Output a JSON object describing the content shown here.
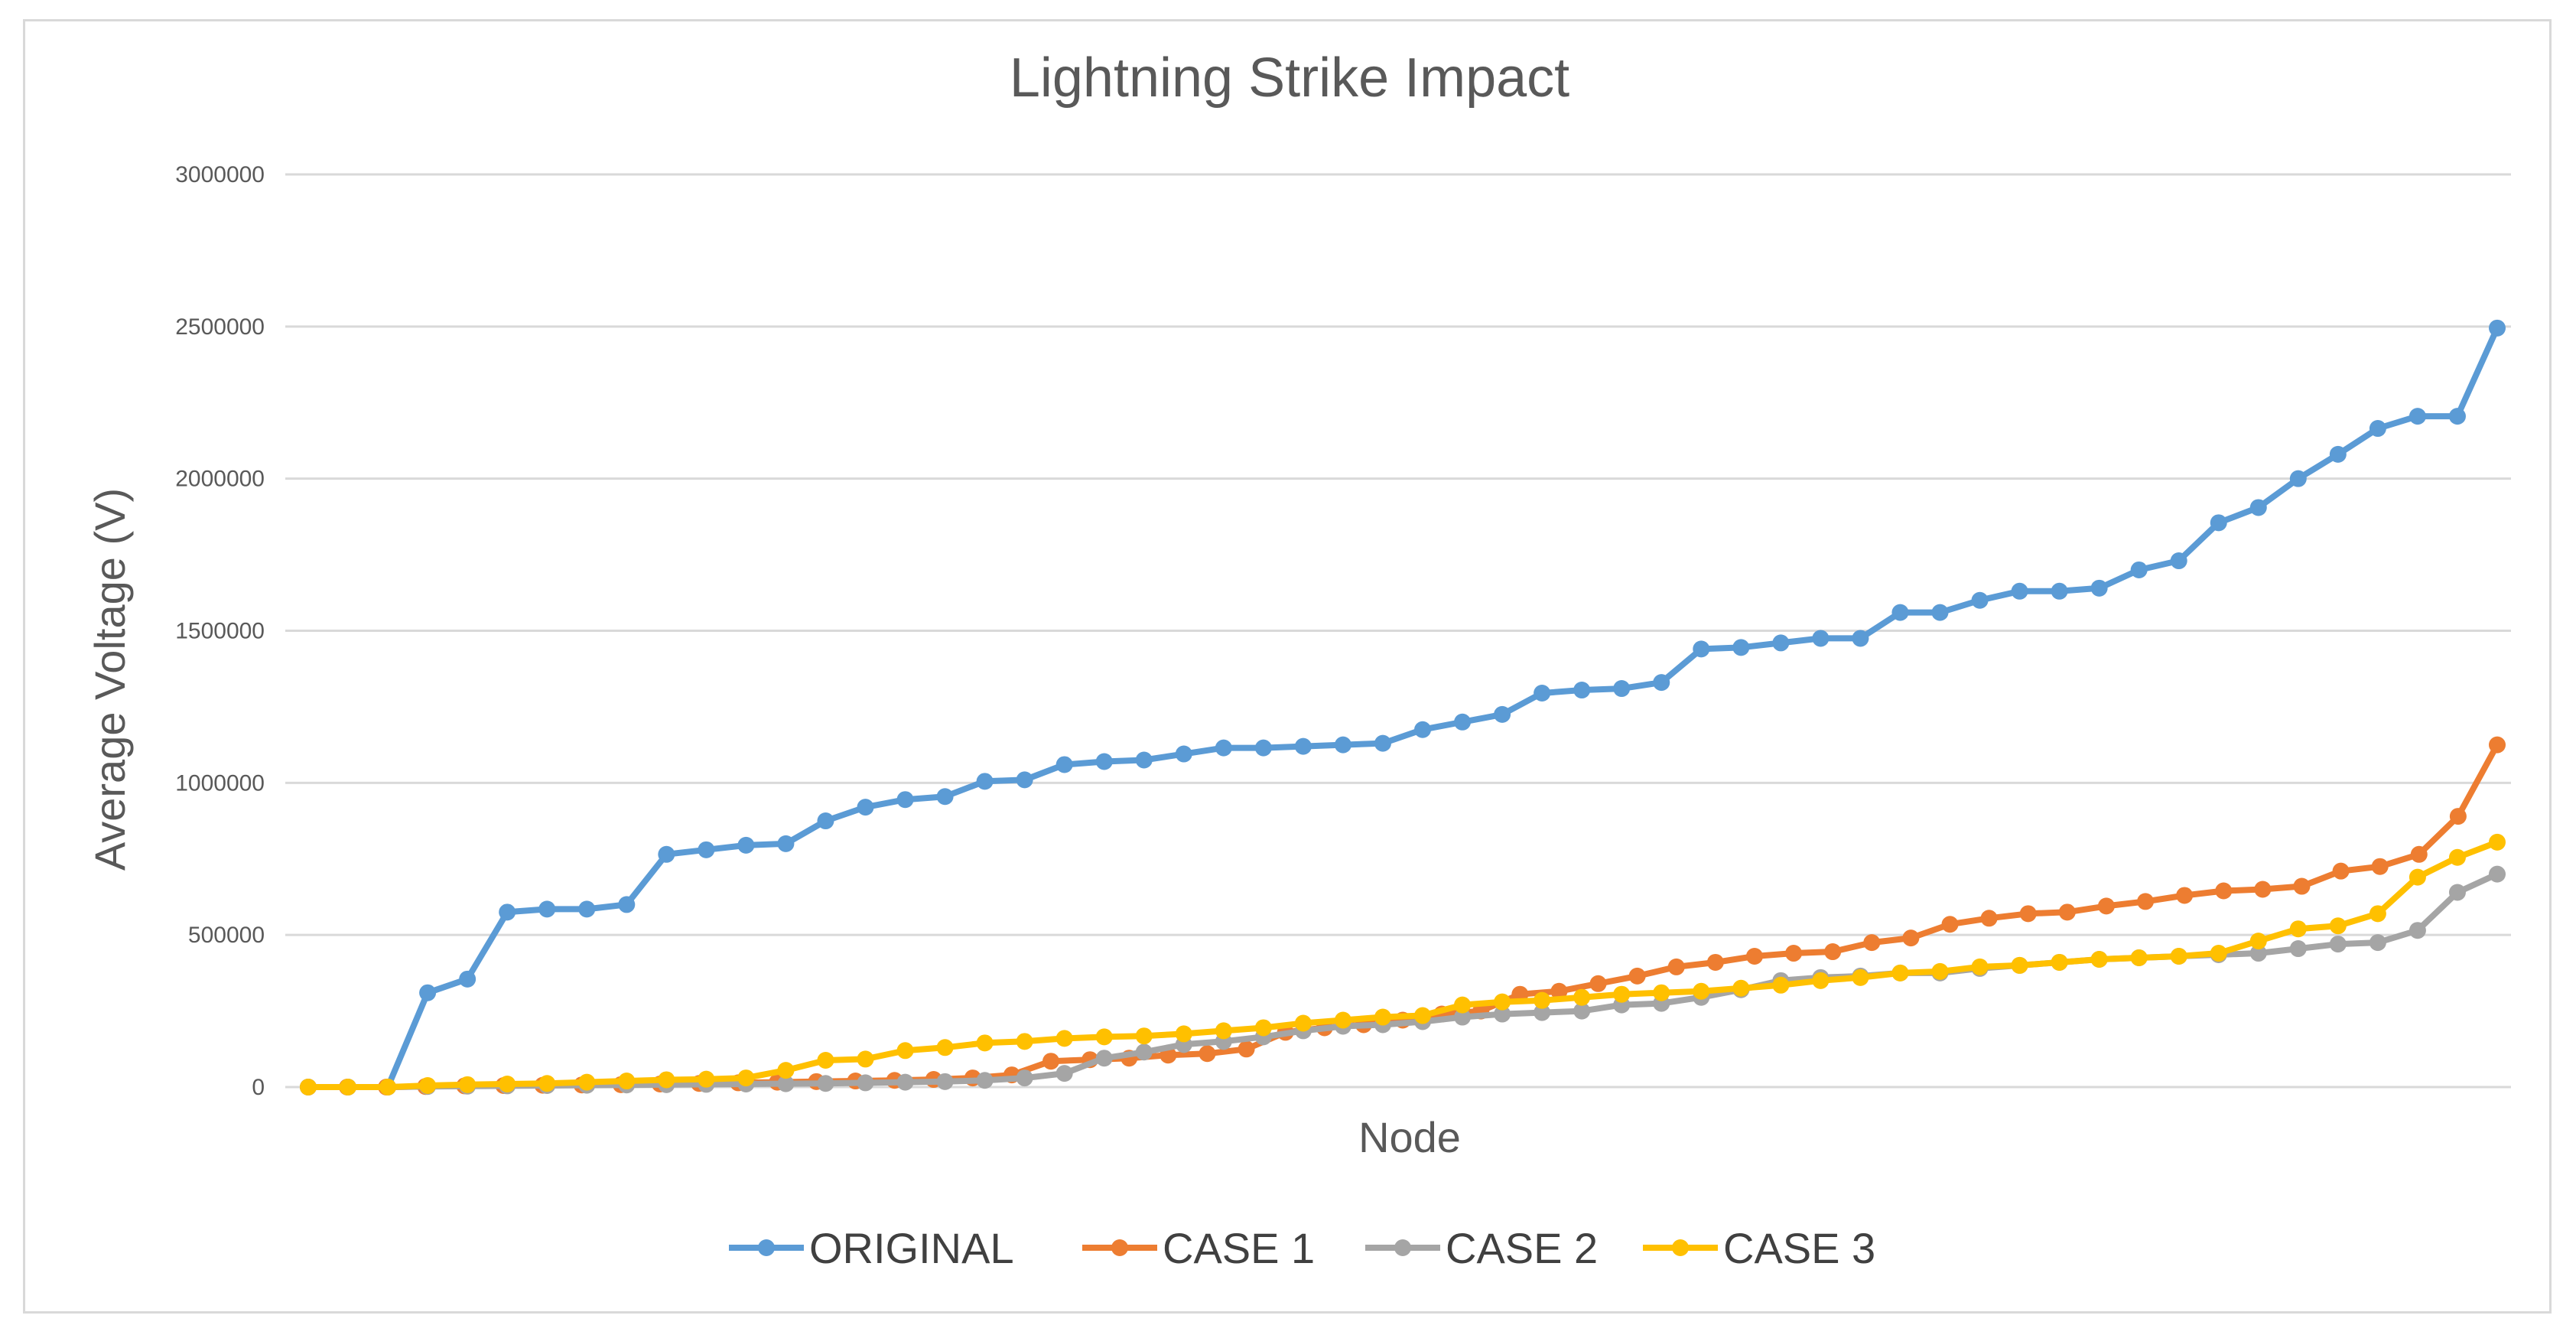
{
  "chart_data": {
    "type": "line",
    "title": "Lightning Strike Impact",
    "xlabel": "Node",
    "ylabel": "Average Voltage (V)",
    "ylim": [
      0,
      3000000
    ],
    "yticks": [
      "0",
      "500000",
      "1000000",
      "1500000",
      "2000000",
      "2500000",
      "3000000"
    ],
    "grid": true,
    "legend_position": "bottom",
    "series": [
      {
        "name": "ORIGINAL",
        "color": "#5B9BD5",
        "values": [
          0,
          0,
          0,
          310000,
          355000,
          575000,
          585000,
          585000,
          600000,
          765000,
          780000,
          795000,
          800000,
          875000,
          920000,
          945000,
          955000,
          1005000,
          1010000,
          1060000,
          1070000,
          1075000,
          1095000,
          1115000,
          1115000,
          1120000,
          1125000,
          1130000,
          1175000,
          1200000,
          1225000,
          1295000,
          1305000,
          1310000,
          1330000,
          1440000,
          1445000,
          1460000,
          1475000,
          1475000,
          1560000,
          1560000,
          1600000,
          1630000,
          1630000,
          1640000,
          1700000,
          1730000,
          1855000,
          1905000,
          2000000,
          2080000,
          2165000,
          2205000,
          2205000,
          2495000
        ]
      },
      {
        "name": "CASE 1",
        "color": "#ED7D31",
        "values": [
          0,
          0,
          0,
          2000,
          4000,
          5000,
          6000,
          7000,
          8000,
          10000,
          12000,
          14000,
          16000,
          18000,
          20000,
          22000,
          25000,
          30000,
          40000,
          85000,
          90000,
          95000,
          105000,
          110000,
          125000,
          180000,
          195000,
          205000,
          220000,
          240000,
          250000,
          305000,
          315000,
          340000,
          365000,
          395000,
          410000,
          430000,
          440000,
          445000,
          475000,
          490000,
          535000,
          555000,
          570000,
          575000,
          595000,
          610000,
          630000,
          645000,
          650000,
          660000,
          710000,
          725000,
          765000,
          890000,
          1125000
        ]
      },
      {
        "name": "CASE 2",
        "color": "#A5A5A5",
        "values": [
          0,
          0,
          0,
          2000,
          3000,
          4000,
          5000,
          6000,
          7000,
          8000,
          9000,
          10000,
          11000,
          12000,
          14000,
          16000,
          18000,
          22000,
          30000,
          45000,
          95000,
          115000,
          140000,
          150000,
          165000,
          185000,
          200000,
          205000,
          215000,
          230000,
          240000,
          245000,
          250000,
          270000,
          275000,
          295000,
          320000,
          350000,
          360000,
          365000,
          375000,
          375000,
          390000,
          400000,
          410000,
          420000,
          425000,
          430000,
          435000,
          440000,
          455000,
          470000,
          475000,
          515000,
          640000,
          700000
        ]
      },
      {
        "name": "CASE 3",
        "color": "#FFC000",
        "values": [
          0,
          0,
          0,
          5000,
          8000,
          10000,
          12000,
          16000,
          20000,
          24000,
          26000,
          30000,
          55000,
          88000,
          92000,
          120000,
          130000,
          145000,
          150000,
          160000,
          165000,
          168000,
          175000,
          185000,
          195000,
          210000,
          220000,
          230000,
          235000,
          270000,
          280000,
          285000,
          295000,
          305000,
          310000,
          315000,
          325000,
          335000,
          350000,
          360000,
          375000,
          380000,
          395000,
          400000,
          410000,
          420000,
          425000,
          430000,
          440000,
          480000,
          520000,
          530000,
          570000,
          690000,
          755000,
          805000
        ]
      }
    ]
  }
}
